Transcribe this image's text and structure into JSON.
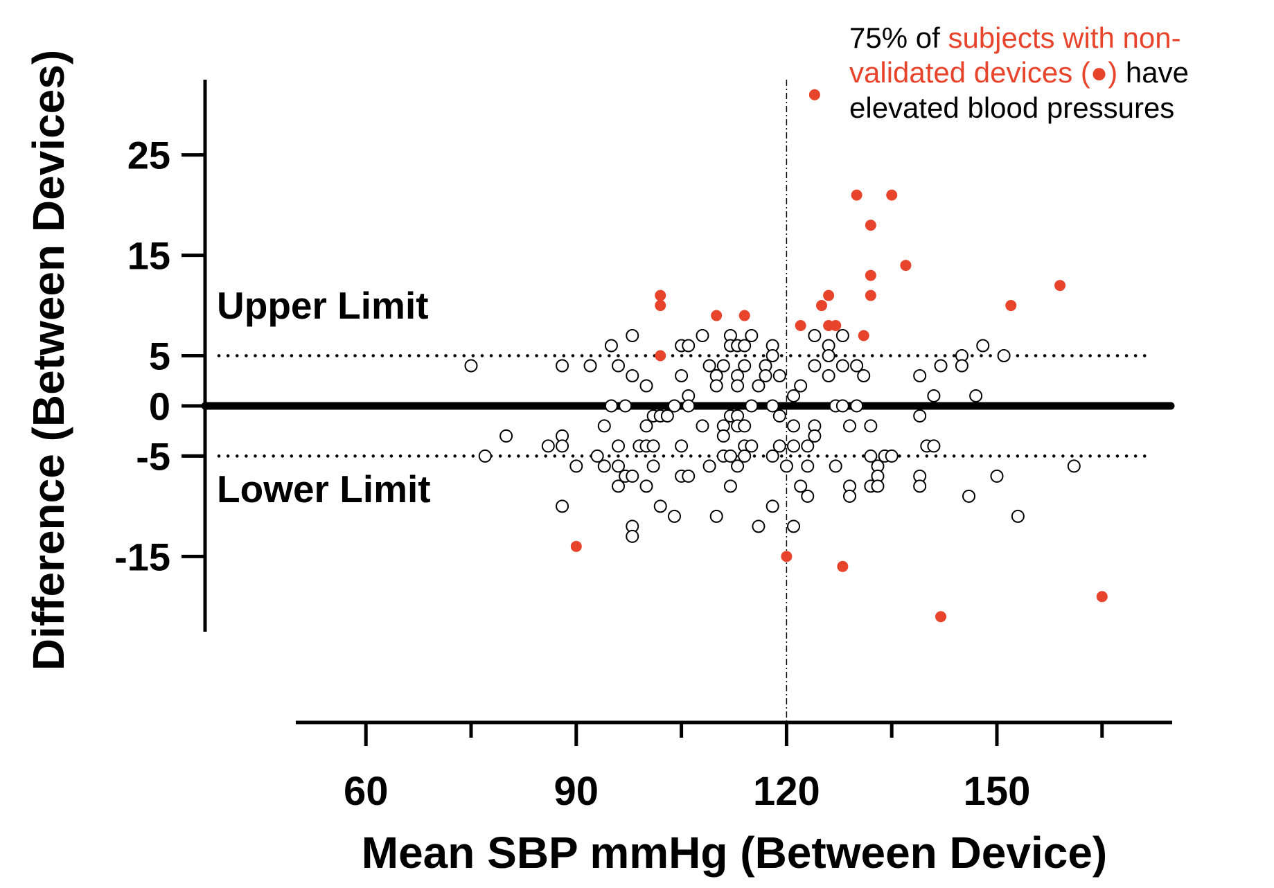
{
  "chart_data": {
    "type": "scatter",
    "title": "",
    "xlabel": "Mean SBP mmHg (Between Device)",
    "ylabel": "Difference (Between Devices)",
    "xlim": [
      50,
      175
    ],
    "ylim": [
      -22.5,
      32.5
    ],
    "x_ticks": [
      60,
      90,
      120,
      150
    ],
    "x_minor_ticks": [
      75,
      105,
      135,
      165
    ],
    "y_ticks": [
      25,
      15,
      5,
      0,
      -5,
      -15
    ],
    "grid": false,
    "reference_lines": {
      "zero": 0,
      "upper_limit": 5,
      "lower_limit": -5,
      "vertical": 120
    },
    "limit_labels": {
      "upper": "Upper Limit",
      "lower": "Lower Limit"
    },
    "annotation": {
      "part1": "75% of",
      "part2": "subjects with non-validated devices (●)",
      "part3": "have elevated blood pressures"
    },
    "colors": {
      "validated": "#000000",
      "non_validated": "#e8432b"
    },
    "series": [
      {
        "name": "non-validated devices",
        "marker": "filled",
        "points": [
          [
            124,
            31
          ],
          [
            130,
            21
          ],
          [
            135,
            21
          ],
          [
            132,
            18
          ],
          [
            137,
            14
          ],
          [
            132,
            13
          ],
          [
            159,
            12
          ],
          [
            102,
            11
          ],
          [
            126,
            11
          ],
          [
            132,
            11
          ],
          [
            102,
            10
          ],
          [
            125,
            10
          ],
          [
            152,
            10
          ],
          [
            110,
            9
          ],
          [
            114,
            9
          ],
          [
            122,
            8
          ],
          [
            126,
            8
          ],
          [
            127,
            8
          ],
          [
            131,
            7
          ],
          [
            102,
            5
          ],
          [
            90,
            -14
          ],
          [
            120,
            -15
          ],
          [
            128,
            -16
          ],
          [
            165,
            -19
          ],
          [
            142,
            -21
          ]
        ]
      },
      {
        "name": "validated devices",
        "marker": "open",
        "points": [
          [
            75,
            4
          ],
          [
            77,
            -5
          ],
          [
            80,
            -3
          ],
          [
            86,
            -4
          ],
          [
            88,
            4
          ],
          [
            88,
            -3
          ],
          [
            88,
            -4
          ],
          [
            88,
            -10
          ],
          [
            90,
            -6
          ],
          [
            92,
            4
          ],
          [
            93,
            -5
          ],
          [
            94,
            -2
          ],
          [
            94,
            -6
          ],
          [
            95,
            6
          ],
          [
            95,
            0
          ],
          [
            96,
            4
          ],
          [
            96,
            -4
          ],
          [
            96,
            -6
          ],
          [
            96,
            -8
          ],
          [
            97,
            0
          ],
          [
            97,
            -7
          ],
          [
            98,
            7
          ],
          [
            98,
            3
          ],
          [
            98,
            -7
          ],
          [
            98,
            -12
          ],
          [
            98,
            -13
          ],
          [
            99,
            -4
          ],
          [
            100,
            2
          ],
          [
            100,
            -2
          ],
          [
            100,
            -4
          ],
          [
            100,
            -8
          ],
          [
            101,
            -1
          ],
          [
            101,
            -4
          ],
          [
            101,
            -6
          ],
          [
            102,
            -1
          ],
          [
            102,
            -10
          ],
          [
            103,
            -1
          ],
          [
            104,
            0
          ],
          [
            104,
            -11
          ],
          [
            105,
            6
          ],
          [
            105,
            3
          ],
          [
            105,
            -4
          ],
          [
            105,
            -7
          ],
          [
            106,
            6
          ],
          [
            106,
            1
          ],
          [
            106,
            0
          ],
          [
            106,
            -7
          ],
          [
            108,
            7
          ],
          [
            108,
            -2
          ],
          [
            109,
            4
          ],
          [
            109,
            -6
          ],
          [
            110,
            3
          ],
          [
            110,
            2
          ],
          [
            110,
            -11
          ],
          [
            111,
            4
          ],
          [
            111,
            -2
          ],
          [
            111,
            -3
          ],
          [
            111,
            -5
          ],
          [
            112,
            7
          ],
          [
            112,
            6
          ],
          [
            112,
            -1
          ],
          [
            112,
            -5
          ],
          [
            112,
            -8
          ],
          [
            113,
            6
          ],
          [
            113,
            3
          ],
          [
            113,
            2
          ],
          [
            113,
            -1
          ],
          [
            113,
            -2
          ],
          [
            113,
            -6
          ],
          [
            114,
            6
          ],
          [
            114,
            4
          ],
          [
            114,
            -2
          ],
          [
            114,
            -4
          ],
          [
            114,
            -5
          ],
          [
            115,
            7
          ],
          [
            115,
            0
          ],
          [
            115,
            -4
          ],
          [
            116,
            2
          ],
          [
            116,
            -12
          ],
          [
            117,
            4
          ],
          [
            117,
            3
          ],
          [
            118,
            6
          ],
          [
            118,
            5
          ],
          [
            118,
            0
          ],
          [
            118,
            -5
          ],
          [
            118,
            -10
          ],
          [
            119,
            3
          ],
          [
            119,
            -1
          ],
          [
            119,
            -4
          ],
          [
            120,
            -6
          ],
          [
            121,
            1
          ],
          [
            121,
            -2
          ],
          [
            121,
            -4
          ],
          [
            121,
            -12
          ],
          [
            122,
            2
          ],
          [
            122,
            -8
          ],
          [
            123,
            -4
          ],
          [
            123,
            -6
          ],
          [
            123,
            -9
          ],
          [
            124,
            7
          ],
          [
            124,
            4
          ],
          [
            124,
            -2
          ],
          [
            124,
            -3
          ],
          [
            126,
            6
          ],
          [
            126,
            5
          ],
          [
            126,
            3
          ],
          [
            127,
            0
          ],
          [
            127,
            -6
          ],
          [
            128,
            7
          ],
          [
            128,
            4
          ],
          [
            128,
            0
          ],
          [
            129,
            -2
          ],
          [
            129,
            -8
          ],
          [
            129,
            -9
          ],
          [
            130,
            4
          ],
          [
            130,
            0
          ],
          [
            131,
            3
          ],
          [
            132,
            -2
          ],
          [
            132,
            -5
          ],
          [
            132,
            -8
          ],
          [
            133,
            -6
          ],
          [
            133,
            -7
          ],
          [
            133,
            -8
          ],
          [
            134,
            -5
          ],
          [
            135,
            -5
          ],
          [
            139,
            3
          ],
          [
            139,
            -1
          ],
          [
            139,
            -7
          ],
          [
            139,
            -8
          ],
          [
            140,
            -4
          ],
          [
            141,
            1
          ],
          [
            141,
            -4
          ],
          [
            142,
            4
          ],
          [
            145,
            5
          ],
          [
            145,
            4
          ],
          [
            146,
            -9
          ],
          [
            147,
            1
          ],
          [
            148,
            6
          ],
          [
            150,
            -7
          ],
          [
            151,
            5
          ],
          [
            153,
            -11
          ],
          [
            161,
            -6
          ]
        ]
      }
    ]
  }
}
